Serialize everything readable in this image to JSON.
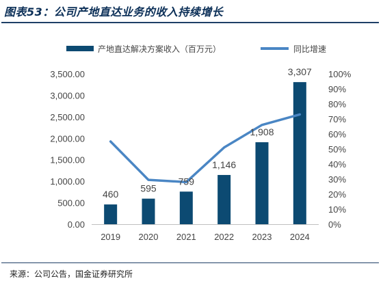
{
  "title": "图表53：公司产地直达业务的收入持续增长",
  "source": "来源：公司公告，国金证券研究所",
  "colors": {
    "bar": "#0c4a72",
    "line": "#4a86c4",
    "rule": "#1e3f66"
  },
  "chart_data": {
    "type": "bar",
    "categories": [
      "2019",
      "2020",
      "2021",
      "2022",
      "2023",
      "2024"
    ],
    "series": [
      {
        "name": "产地直达解决方案收入（百万元）",
        "type": "bar",
        "axis": "left",
        "values": [
          460,
          595,
          759,
          1146,
          1908,
          3307
        ],
        "labels": [
          "460",
          "595",
          "759",
          "1,146",
          "1,908",
          "3,307"
        ]
      },
      {
        "name": "同比增速",
        "type": "line",
        "axis": "right",
        "values": [
          55,
          29.5,
          28,
          51,
          66,
          73
        ]
      }
    ],
    "y_left": {
      "min": 0,
      "max": 3500,
      "step": 500,
      "tick_labels": [
        "0.00",
        "500.00",
        "1,000.00",
        "1,500.00",
        "2,000.00",
        "2,500.00",
        "3,000.00",
        "3,500.00"
      ]
    },
    "y_right": {
      "min": 0,
      "max": 100,
      "step": 10,
      "tick_labels": [
        "0%",
        "10%",
        "20%",
        "30%",
        "40%",
        "50%",
        "60%",
        "70%",
        "80%",
        "90%",
        "100%"
      ]
    },
    "legend_position": "top",
    "grid": false
  }
}
